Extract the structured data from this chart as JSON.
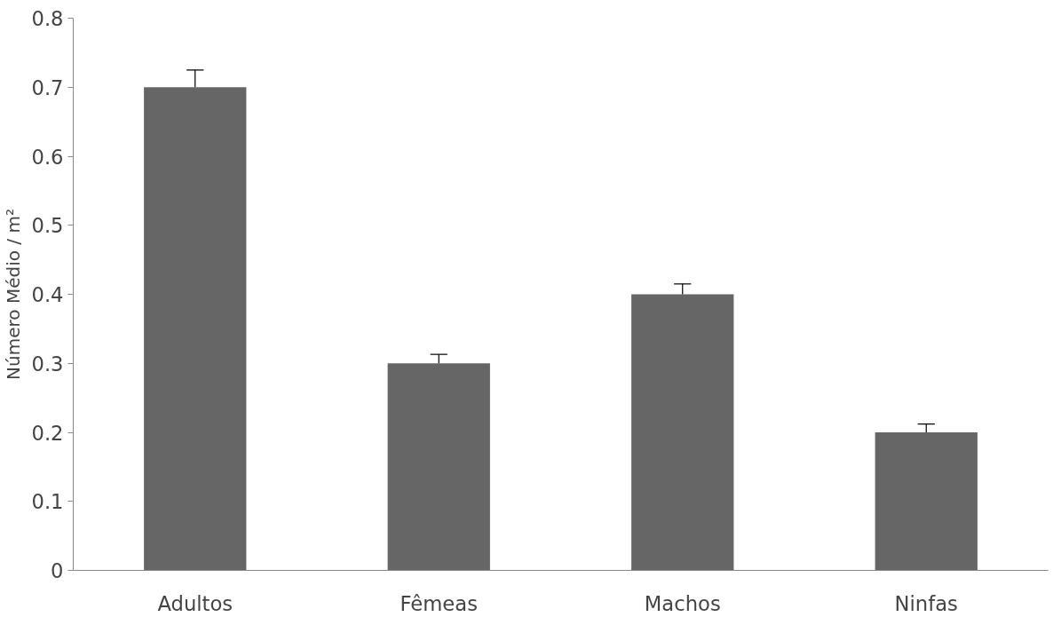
{
  "chart_data": {
    "type": "bar",
    "ylabel": "Número Médio / m²",
    "categories": [
      "Adultos",
      "Fêmeas",
      "Machos",
      "Ninfas"
    ],
    "values": [
      0.7,
      0.3,
      0.4,
      0.2
    ],
    "color": "#666666",
    "errors": [
      [
        0.7,
        0.725
      ],
      [
        0.3,
        0.313
      ],
      [
        0.4,
        0.415
      ],
      [
        0.2,
        0.212
      ]
    ],
    "ylim": [
      0,
      0.8
    ],
    "yticks": [
      0,
      0.1,
      0.2,
      0.3,
      0.4,
      0.5,
      0.6,
      0.7,
      0.8
    ],
    "grid": false
  }
}
